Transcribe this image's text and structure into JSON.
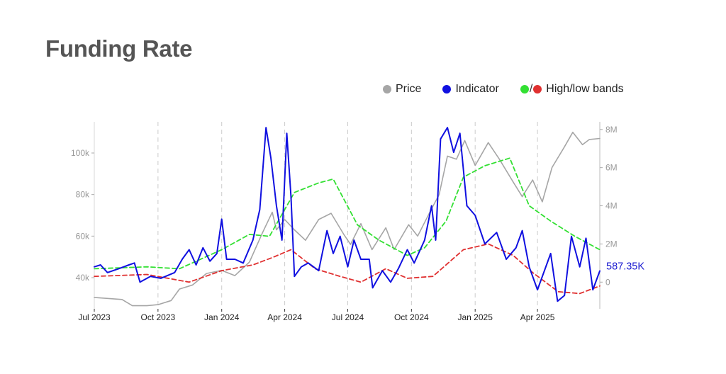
{
  "page": {
    "title": "Funding Rate"
  },
  "legend": {
    "price_label": "Price",
    "indicator_label": "Indicator",
    "bands_label": "High/low bands",
    "bands_separator": "/"
  },
  "colors": {
    "price": "#a6a6a6",
    "indicator": "#1010e0",
    "high_band": "#33e033",
    "low_band": "#e03030",
    "grid": "#cccccc",
    "axis": "#999999",
    "last_value": "#1a1ad0"
  },
  "chart_data": {
    "type": "line",
    "title": "Funding Rate",
    "x_tick_labels": [
      "Jul 2023",
      "Oct 2023",
      "Jan 2024",
      "Apr 2024",
      "Jul 2024",
      "Oct 2024",
      "Jan 2025",
      "Apr 2025"
    ],
    "x_range": [
      "2023-07-01",
      "2025-06-30"
    ],
    "y_left": {
      "ticks": [
        40000,
        60000,
        80000,
        100000
      ],
      "tick_labels": [
        "40k",
        "60k",
        "80k",
        "100k"
      ],
      "range": [
        25000,
        115000
      ]
    },
    "y_right": {
      "ticks": [
        0,
        2000000,
        4000000,
        6000000,
        8000000
      ],
      "tick_labels": [
        "0",
        "2M",
        "4M",
        "6M",
        "8M"
      ],
      "range": [
        -1400000,
        8400000
      ]
    },
    "last_value_label": "587.35K",
    "grid": "vertical dashed",
    "legend_position": "top-right",
    "series": [
      {
        "name": "Price",
        "axis": "left",
        "color": "#a6a6a6",
        "points": [
          [
            "2023-07-01",
            30500
          ],
          [
            "2023-07-20",
            30000
          ],
          [
            "2023-08-10",
            29500
          ],
          [
            "2023-08-25",
            26500
          ],
          [
            "2023-09-15",
            26500
          ],
          [
            "2023-10-01",
            27000
          ],
          [
            "2023-10-20",
            29000
          ],
          [
            "2023-11-01",
            34500
          ],
          [
            "2023-11-20",
            36500
          ],
          [
            "2023-12-10",
            42000
          ],
          [
            "2024-01-01",
            43500
          ],
          [
            "2024-01-20",
            41000
          ],
          [
            "2024-02-10",
            47500
          ],
          [
            "2024-02-28",
            61000
          ],
          [
            "2024-03-14",
            71500
          ],
          [
            "2024-03-20",
            63000
          ],
          [
            "2024-04-01",
            68000
          ],
          [
            "2024-04-15",
            63000
          ],
          [
            "2024-05-01",
            58000
          ],
          [
            "2024-05-20",
            68000
          ],
          [
            "2024-06-07",
            71000
          ],
          [
            "2024-06-25",
            61000
          ],
          [
            "2024-07-05",
            56000
          ],
          [
            "2024-07-20",
            66000
          ],
          [
            "2024-08-05",
            53500
          ],
          [
            "2024-08-25",
            64000
          ],
          [
            "2024-09-06",
            53500
          ],
          [
            "2024-09-27",
            65500
          ],
          [
            "2024-10-10",
            60000
          ],
          [
            "2024-10-29",
            72500
          ],
          [
            "2024-11-10",
            80000
          ],
          [
            "2024-11-22",
            98500
          ],
          [
            "2024-12-05",
            97000
          ],
          [
            "2024-12-17",
            106000
          ],
          [
            "2025-01-01",
            94000
          ],
          [
            "2025-01-20",
            105000
          ],
          [
            "2025-02-05",
            97000
          ],
          [
            "2025-02-25",
            86000
          ],
          [
            "2025-03-10",
            79000
          ],
          [
            "2025-03-25",
            87000
          ],
          [
            "2025-04-08",
            76500
          ],
          [
            "2025-04-22",
            93000
          ],
          [
            "2025-05-10",
            103000
          ],
          [
            "2025-05-22",
            110000
          ],
          [
            "2025-06-05",
            104000
          ],
          [
            "2025-06-15",
            106500
          ],
          [
            "2025-06-30",
            107000
          ]
        ]
      },
      {
        "name": "Indicator",
        "axis": "right",
        "color": "#1010e0",
        "points": [
          [
            "2023-07-01",
            800000
          ],
          [
            "2023-07-10",
            900000
          ],
          [
            "2023-07-20",
            500000
          ],
          [
            "2023-08-05",
            700000
          ],
          [
            "2023-08-20",
            900000
          ],
          [
            "2023-08-28",
            1000000
          ],
          [
            "2023-09-05",
            0
          ],
          [
            "2023-09-20",
            300000
          ],
          [
            "2023-10-05",
            200000
          ],
          [
            "2023-10-25",
            500000
          ],
          [
            "2023-11-05",
            1200000
          ],
          [
            "2023-11-15",
            1700000
          ],
          [
            "2023-11-25",
            900000
          ],
          [
            "2023-12-05",
            1800000
          ],
          [
            "2023-12-15",
            1100000
          ],
          [
            "2023-12-25",
            1500000
          ],
          [
            "2024-01-01",
            3300000
          ],
          [
            "2024-01-08",
            1200000
          ],
          [
            "2024-01-20",
            1200000
          ],
          [
            "2024-02-01",
            1000000
          ],
          [
            "2024-02-15",
            2200000
          ],
          [
            "2024-02-25",
            3800000
          ],
          [
            "2024-03-05",
            8100000
          ],
          [
            "2024-03-12",
            6500000
          ],
          [
            "2024-03-20",
            4000000
          ],
          [
            "2024-03-28",
            2200000
          ],
          [
            "2024-04-04",
            7800000
          ],
          [
            "2024-04-10",
            4500000
          ],
          [
            "2024-04-15",
            300000
          ],
          [
            "2024-04-25",
            800000
          ],
          [
            "2024-05-05",
            1000000
          ],
          [
            "2024-05-20",
            600000
          ],
          [
            "2024-06-01",
            2700000
          ],
          [
            "2024-06-10",
            1500000
          ],
          [
            "2024-06-20",
            2400000
          ],
          [
            "2024-07-01",
            800000
          ],
          [
            "2024-07-10",
            2200000
          ],
          [
            "2024-07-20",
            1200000
          ],
          [
            "2024-08-01",
            1200000
          ],
          [
            "2024-08-06",
            -300000
          ],
          [
            "2024-08-20",
            600000
          ],
          [
            "2024-09-01",
            0
          ],
          [
            "2024-09-12",
            700000
          ],
          [
            "2024-09-25",
            1700000
          ],
          [
            "2024-10-05",
            1000000
          ],
          [
            "2024-10-20",
            2200000
          ],
          [
            "2024-10-30",
            4000000
          ],
          [
            "2024-11-05",
            2200000
          ],
          [
            "2024-11-12",
            7500000
          ],
          [
            "2024-11-22",
            8100000
          ],
          [
            "2024-12-01",
            6800000
          ],
          [
            "2024-12-10",
            7800000
          ],
          [
            "2024-12-20",
            4000000
          ],
          [
            "2025-01-01",
            3500000
          ],
          [
            "2025-01-15",
            2000000
          ],
          [
            "2025-02-01",
            2600000
          ],
          [
            "2025-02-15",
            1200000
          ],
          [
            "2025-03-01",
            1800000
          ],
          [
            "2025-03-10",
            2700000
          ],
          [
            "2025-03-20",
            800000
          ],
          [
            "2025-04-01",
            -400000
          ],
          [
            "2025-04-20",
            1500000
          ],
          [
            "2025-04-30",
            -1000000
          ],
          [
            "2025-05-10",
            -700000
          ],
          [
            "2025-05-20",
            2400000
          ],
          [
            "2025-06-01",
            800000
          ],
          [
            "2025-06-10",
            2300000
          ],
          [
            "2025-06-20",
            -400000
          ],
          [
            "2025-06-30",
            587350
          ]
        ]
      },
      {
        "name": "High band",
        "axis": "right",
        "color": "#33e033",
        "style": "dashed",
        "points": [
          [
            "2023-07-01",
            700000
          ],
          [
            "2023-09-15",
            800000
          ],
          [
            "2023-11-01",
            700000
          ],
          [
            "2024-01-01",
            1700000
          ],
          [
            "2024-02-10",
            2500000
          ],
          [
            "2024-03-10",
            2400000
          ],
          [
            "2024-04-15",
            4700000
          ],
          [
            "2024-05-20",
            5200000
          ],
          [
            "2024-06-10",
            5400000
          ],
          [
            "2024-07-15",
            3000000
          ],
          [
            "2024-08-15",
            2200000
          ],
          [
            "2024-09-25",
            1400000
          ],
          [
            "2024-10-20",
            1800000
          ],
          [
            "2024-11-20",
            3200000
          ],
          [
            "2024-12-15",
            5500000
          ],
          [
            "2025-01-15",
            6100000
          ],
          [
            "2025-02-20",
            6500000
          ],
          [
            "2025-03-20",
            4000000
          ],
          [
            "2025-04-20",
            3200000
          ],
          [
            "2025-05-25",
            2400000
          ],
          [
            "2025-06-30",
            1700000
          ]
        ]
      },
      {
        "name": "Low band",
        "axis": "right",
        "color": "#e03030",
        "style": "dashed",
        "points": [
          [
            "2023-07-01",
            300000
          ],
          [
            "2023-09-15",
            400000
          ],
          [
            "2023-11-15",
            0
          ],
          [
            "2024-01-01",
            600000
          ],
          [
            "2024-02-15",
            900000
          ],
          [
            "2024-03-15",
            1300000
          ],
          [
            "2024-04-10",
            1700000
          ],
          [
            "2024-05-15",
            700000
          ],
          [
            "2024-06-20",
            300000
          ],
          [
            "2024-07-20",
            0
          ],
          [
            "2024-08-25",
            700000
          ],
          [
            "2024-09-25",
            200000
          ],
          [
            "2024-11-01",
            300000
          ],
          [
            "2024-12-15",
            1700000
          ],
          [
            "2025-01-20",
            2000000
          ],
          [
            "2025-02-25",
            1400000
          ],
          [
            "2025-03-25",
            500000
          ],
          [
            "2025-05-01",
            -500000
          ],
          [
            "2025-06-01",
            -600000
          ],
          [
            "2025-06-30",
            -200000
          ]
        ]
      }
    ]
  }
}
